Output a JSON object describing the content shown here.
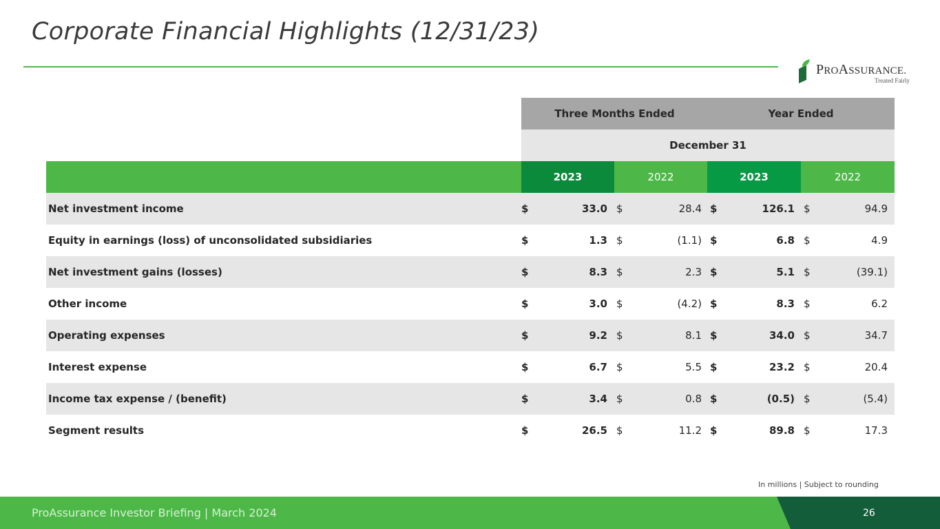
{
  "title": "Corporate Financial Highlights (12/31/23)",
  "logo": {
    "p": "P",
    "ro": "RO",
    "a": "A",
    "ssurance": "SSURANCE",
    "mark": ".",
    "tagline": "Treated Fairly"
  },
  "table": {
    "group_headers": [
      "Three Months Ended",
      "Year Ended"
    ],
    "period": "December 31",
    "years": [
      "2023",
      "2022",
      "2023",
      "2022"
    ],
    "rows": [
      {
        "label": "Net investment income",
        "q23": "33.0",
        "q22": "28.4",
        "y23": "126.1",
        "y22": "94.9"
      },
      {
        "label": "Equity in earnings (loss) of unconsolidated subsidiaries",
        "q23": "1.3",
        "q22": "(1.1)",
        "y23": "6.8",
        "y22": "4.9"
      },
      {
        "label": "Net investment gains (losses)",
        "q23": "8.3",
        "q22": "2.3",
        "y23": "5.1",
        "y22": "(39.1)"
      },
      {
        "label": "Other income",
        "q23": "3.0",
        "q22": "(4.2)",
        "y23": "8.3",
        "y22": "6.2"
      },
      {
        "label": "Operating expenses",
        "q23": "9.2",
        "q22": "8.1",
        "y23": "34.0",
        "y22": "34.7"
      },
      {
        "label": "Interest expense",
        "q23": "6.7",
        "q22": "5.5",
        "y23": "23.2",
        "y22": "20.4"
      },
      {
        "label": "Income tax expense / (benefit)",
        "q23": "3.4",
        "q22": "0.8",
        "y23": "(0.5)",
        "y22": "(5.4)"
      },
      {
        "label": "Segment results",
        "q23": "26.5",
        "q22": "11.2",
        "y23": "89.8",
        "y22": "17.3"
      }
    ],
    "currency_symbol": "$"
  },
  "note": "In millions | Subject to rounding",
  "footer": {
    "text": "ProAssurance Investor Briefing | March 2024",
    "page": "26"
  },
  "colors": {
    "green": "#4db848",
    "dark_green": "#135d3b",
    "grey_header": "#a6a6a6",
    "light_grey": "#e6e6e6"
  }
}
